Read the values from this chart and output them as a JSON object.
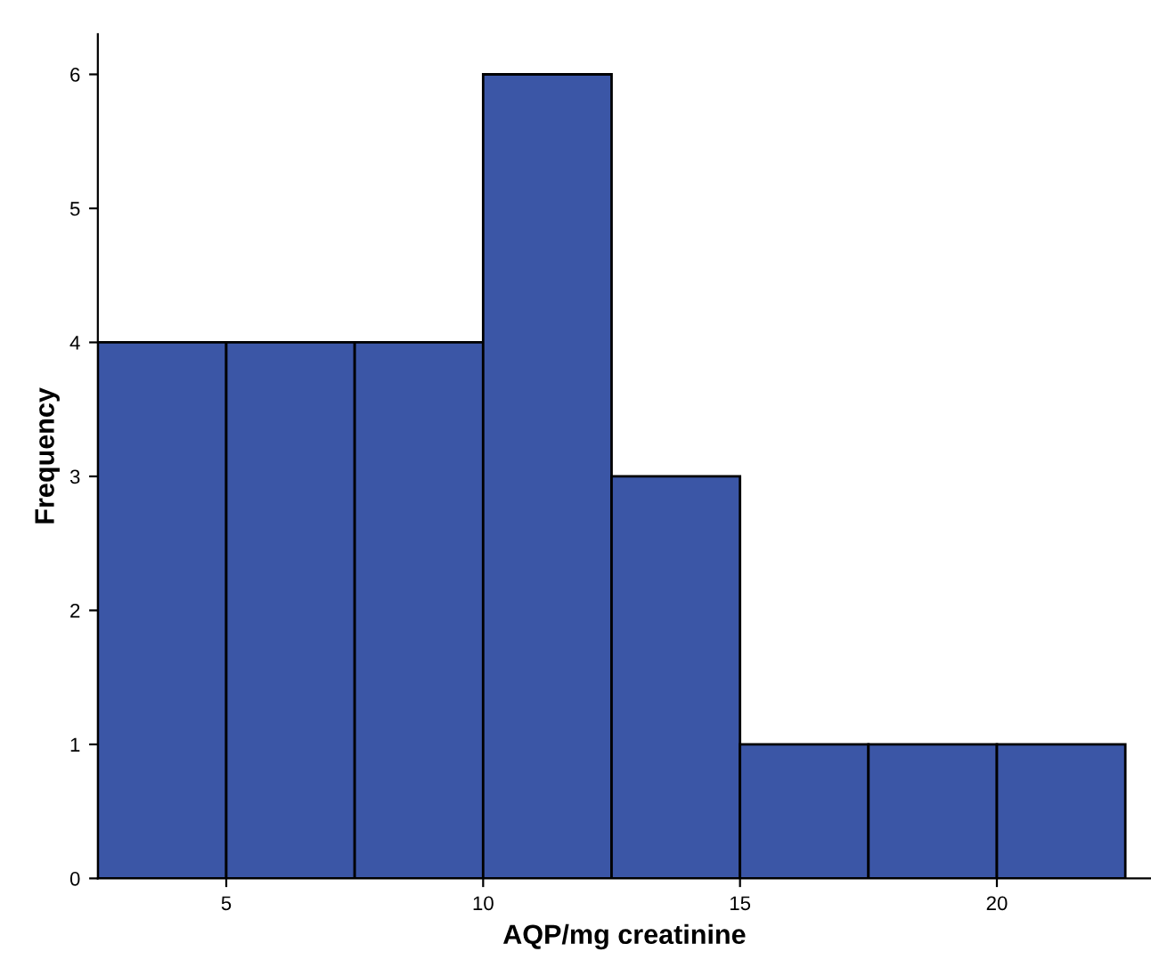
{
  "chart_data": {
    "type": "histogram",
    "xlabel": "AQP/mg creatinine",
    "ylabel": "Frequency",
    "bins": [
      2.5,
      5,
      7.5,
      10,
      12.5,
      15,
      17.5,
      20,
      22.5
    ],
    "values": [
      4,
      4,
      4,
      6,
      3,
      1,
      1,
      1
    ],
    "color": "#3b56a6",
    "xlim": [
      2.5,
      23
    ],
    "xticks": [
      5,
      10,
      15,
      20
    ],
    "ylim": [
      0,
      6.3
    ],
    "yticks": [
      0,
      1,
      2,
      3,
      4,
      5,
      6
    ],
    "grid": false,
    "legend": false
  }
}
